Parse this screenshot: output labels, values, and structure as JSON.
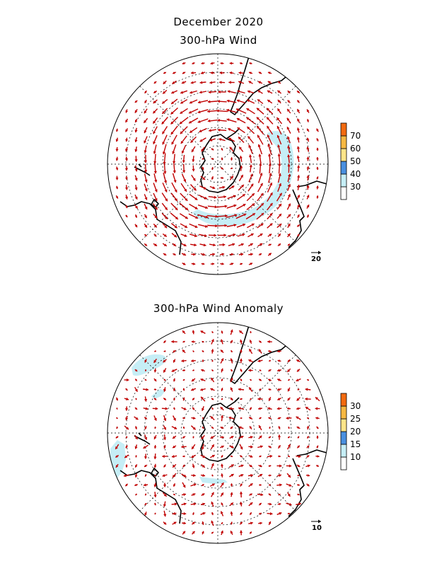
{
  "header": {
    "title": "December 2020",
    "top_map_title": "300-hPa Wind",
    "bottom_map_title": "300-hPa Wind Anomaly"
  },
  "top_map": {
    "legend_levels": [
      "30",
      "40",
      "50",
      "60",
      "70"
    ],
    "legend_colors": [
      "#ffffff",
      "#c6eef6",
      "#4a90e0",
      "#ffe58a",
      "#f7b842",
      "#f26a10"
    ],
    "reference_vector_label": "20",
    "vector_color": "#c00000",
    "shading_color": "#c6eef6"
  },
  "bottom_map": {
    "legend_levels": [
      "10",
      "15",
      "20",
      "25",
      "30"
    ],
    "legend_colors": [
      "#ffffff",
      "#c6eef6",
      "#4a90e0",
      "#ffe58a",
      "#f7b842",
      "#f26a10"
    ],
    "reference_vector_label": "10",
    "vector_color": "#c00000",
    "shading_color": "#c6eef6"
  }
}
